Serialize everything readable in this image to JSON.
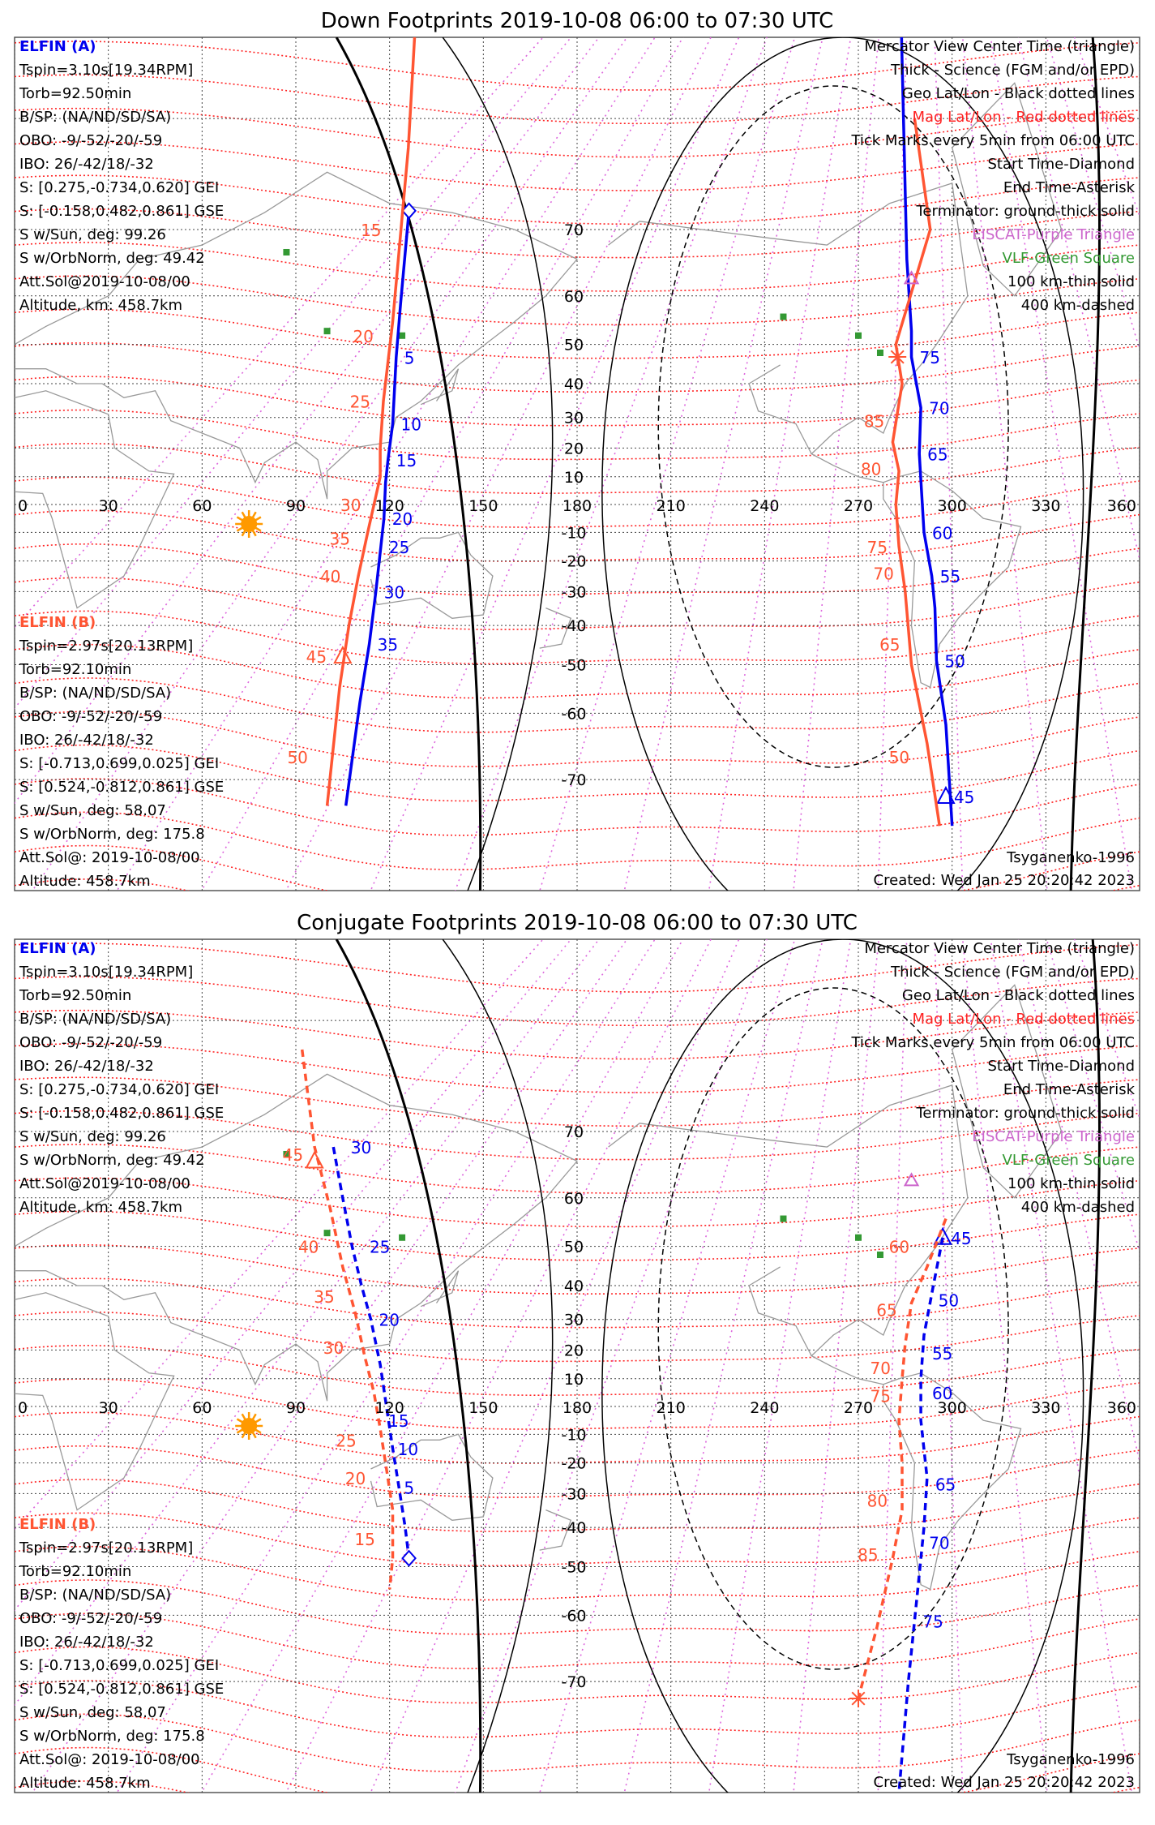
{
  "colors": {
    "elfin_a": "#0000ee",
    "elfin_b": "#ff5533",
    "geo_grid": "#444444",
    "mag_grid": "#ff2222",
    "mag_meridian": "#dd66dd",
    "terminator": "#000000",
    "sun": "#ff9900",
    "coast": "#999999",
    "vlf": "#339933",
    "eiscat": "#cc66cc"
  },
  "panels": [
    {
      "title": "Down Footprints 2019-10-08 06:00 to 07:30 UTC",
      "left_a": {
        "header": "ELFIN (A)",
        "lines": [
          "Tspin=3.10s[19.34RPM]",
          "Torb=92.50min",
          "B/SP: (NA/ND/SD/SA)",
          "OBO: -9/-52/-20/-59",
          "IBO: 26/-42/18/-32",
          "S: [0.275,-0.734,0.620] GEI",
          "S: [-0.158,0.482,0.861] GSE",
          "S w/Sun, deg: 99.26",
          "S w/OrbNorm, deg: 49.42",
          "Att.Sol@2019-10-08/00",
          "Altitude, km: 458.7km"
        ]
      },
      "left_b": {
        "header": "ELFIN (B)",
        "lines": [
          "Tspin=2.97s[20.13RPM]",
          "Torb=92.10min",
          "B/SP: (NA/ND/SD/SA)",
          "OBO: -9/-52/-20/-59",
          "IBO: 26/-42/18/-32",
          "S: [-0.713,0.699,0.025] GEI",
          "S: [0.524,-0.812,0.861] GSE",
          "S w/Sun, deg: 58.07",
          "S w/OrbNorm, deg: 175.8",
          "Att.Sol@: 2019-10-08/00",
          "Altitude: 458.7km"
        ]
      },
      "legend": [
        "Mercator View Center Time (triangle)",
        "Thick - Science (FGM and/or EPD)",
        "Geo Lat/Lon - Black dotted lines",
        "Mag Lat/Lon - Red dotted lines",
        "Tick Marks every 5min from 06:00 UTC",
        "Start Time-Diamond",
        "End Time-Asterisk",
        "Terminator: ground-thick solid",
        "EISCAT-Purple Triangle",
        "VLF-Green Square",
        "100 km-thin solid",
        "400 km-dashed"
      ],
      "model": "Tsyganenko-1996",
      "created": "Created: Wed Jan 25 20:20:42 2023"
    },
    {
      "title": "Conjugate Footprints 2019-10-08 06:00 to 07:30 UTC",
      "left_a": {
        "header": "ELFIN (A)",
        "lines": [
          "Tspin=3.10s[19.34RPM]",
          "Torb=92.50min",
          "B/SP: (NA/ND/SD/SA)",
          "OBO: -9/-52/-20/-59",
          "IBO: 26/-42/18/-32",
          "S: [0.275,-0.734,0.620] GEI",
          "S: [-0.158,0.482,0.861] GSE",
          "S w/Sun, deg: 99.26",
          "S w/OrbNorm, deg: 49.42",
          "Att.Sol@2019-10-08/00",
          "Altitude, km: 458.7km"
        ]
      },
      "left_b": {
        "header": "ELFIN (B)",
        "lines": [
          "Tspin=2.97s[20.13RPM]",
          "Torb=92.10min",
          "B/SP: (NA/ND/SD/SA)",
          "OBO: -9/-52/-20/-59",
          "IBO: 26/-42/18/-32",
          "S: [-0.713,0.699,0.025] GEI",
          "S: [0.524,-0.812,0.861] GSE",
          "S w/Sun, deg: 58.07",
          "S w/OrbNorm, deg: 175.8",
          "Att.Sol@: 2019-10-08/00",
          "Altitude: 458.7km"
        ]
      },
      "legend": [
        "Mercator View Center Time (triangle)",
        "Thick - Science (FGM and/or EPD)",
        "Geo Lat/Lon - Black dotted lines",
        "Mag Lat/Lon - Red dotted lines",
        "Tick Marks every 5min from 06:00 UTC",
        "Start Time-Diamond",
        "End Time-Asterisk",
        "Terminator: ground-thick solid",
        "EISCAT-Purple Triangle",
        "VLF-Green Square",
        "100 km-thin solid",
        "400 km-dashed"
      ],
      "model": "Tsyganenko-1996",
      "created": "Created: Wed Jan 25 20:20:42 2023"
    }
  ],
  "chart_data": [
    {
      "type": "map",
      "projection": "mercator",
      "title": "Down Footprints 2019-10-08 06:00 to 07:30 UTC",
      "x_range": [
        0,
        360
      ],
      "y_range": [
        -80,
        84
      ],
      "x_ticks": [
        0,
        30,
        60,
        90,
        120,
        150,
        180,
        210,
        240,
        270,
        300,
        330,
        360
      ],
      "y_ticks": [
        70,
        60,
        50,
        40,
        30,
        20,
        10,
        -10,
        -20,
        -30,
        -40,
        -50,
        -60,
        -70
      ],
      "center_lon": 180,
      "grid": true,
      "sun": {
        "lon": 75,
        "lat": -7
      },
      "vlf_stations": [
        [
          87,
          67
        ],
        [
          100,
          53
        ],
        [
          124,
          52
        ],
        [
          246,
          56
        ],
        [
          270,
          52
        ],
        [
          277,
          48
        ]
      ],
      "eiscat": [
        [
          287,
          63
        ]
      ],
      "series": [
        {
          "name": "ELFIN (A)",
          "style": "solid",
          "points": [
            [
              126.2,
              72.2
            ],
            [
              124.8,
              66
            ],
            [
              123.5,
              58.5
            ],
            [
              122.1,
              46.9
            ],
            [
              121,
              28
            ],
            [
              119.5,
              16
            ],
            [
              118.7,
              8
            ],
            [
              118.2,
              -5
            ],
            [
              117.2,
              -15
            ],
            [
              115.6,
              -30
            ],
            [
              113.5,
              -45
            ],
            [
              110.5,
              -58
            ],
            [
              106,
              -73
            ]
          ],
          "ticks": [
            {
              "label": "5",
              "lon": 122.1,
              "lat": 46.9
            },
            {
              "label": "10",
              "lon": 121,
              "lat": 28
            },
            {
              "label": "15",
              "lon": 119.5,
              "lat": 16
            },
            {
              "label": "20",
              "lon": 118.2,
              "lat": -5
            },
            {
              "label": "25",
              "lon": 117.2,
              "lat": -15
            },
            {
              "label": "30",
              "lon": 115.6,
              "lat": -30
            },
            {
              "label": "35",
              "lon": 113.5,
              "lat": -45
            }
          ],
          "start": [
            126.2,
            72.2
          ]
        },
        {
          "name": "ELFIN (B)",
          "style": "solid",
          "points": [
            [
              128,
              84
            ],
            [
              126,
              78
            ],
            [
              123,
              67
            ],
            [
              121,
              55
            ],
            [
              118,
              35
            ],
            [
              117,
              20
            ],
            [
              117,
              10
            ],
            [
              115,
              0
            ],
            [
              113,
              -10
            ],
            [
              110,
              -25
            ],
            [
              107,
              -40
            ],
            [
              104,
              -55
            ],
            [
              100,
              -73
            ]
          ],
          "ticks": [
            {
              "label": "15",
              "lon": 121,
              "lat": 70
            },
            {
              "label": "20",
              "lon": 118.5,
              "lat": 52
            },
            {
              "label": "25",
              "lon": 117.5,
              "lat": 35
            },
            {
              "label": "30",
              "lon": 114.5,
              "lat": 0
            },
            {
              "label": "35",
              "lon": 111,
              "lat": -12
            },
            {
              "label": "40",
              "lon": 108,
              "lat": -25
            },
            {
              "label": "45",
              "lon": 103.5,
              "lat": -48
            },
            {
              "label": "50",
              "lon": 97.5,
              "lat": -67
            }
          ],
          "view_center": [
            105,
            -48
          ]
        },
        {
          "name": "ELFIN (A)",
          "style": "solid",
          "points": [
            [
              282.5,
              88
            ],
            [
              285.5,
              66
            ],
            [
              287,
              53
            ],
            [
              287,
              47
            ],
            [
              290,
              33
            ],
            [
              289.5,
              18
            ],
            [
              291,
              -10
            ],
            [
              293.5,
              -25
            ],
            [
              294.5,
              -35
            ],
            [
              295,
              -49
            ],
            [
              298,
              -62
            ],
            [
              300,
              -75
            ]
          ],
          "ticks": [
            {
              "label": "75",
              "lon": 287,
              "lat": 47
            },
            {
              "label": "70",
              "lon": 290,
              "lat": 33
            },
            {
              "label": "65",
              "lon": 289.5,
              "lat": 18
            },
            {
              "label": "60",
              "lon": 291,
              "lat": -10
            },
            {
              "label": "55",
              "lon": 293.5,
              "lat": -25
            },
            {
              "label": "50",
              "lon": 295,
              "lat": -49
            },
            {
              "label": "45",
              "lon": 298,
              "lat": -72
            }
          ],
          "view_center": [
            298,
            -72
          ]
        },
        {
          "name": "ELFIN (B)",
          "style": "solid",
          "points": [
            [
              288,
              80
            ],
            [
              293,
              70
            ],
            [
              282,
              50
            ],
            [
              284,
              40
            ],
            [
              281,
              22
            ],
            [
              283,
              12
            ],
            [
              282,
              0
            ],
            [
              283,
              -15
            ],
            [
              285,
              -30
            ],
            [
              287,
              -50
            ],
            [
              292,
              -65
            ],
            [
              296,
              -75
            ]
          ],
          "ticks": [
            {
              "label": "85",
              "lon": 282,
              "lat": 29
            },
            {
              "label": "80",
              "lon": 281,
              "lat": 13
            },
            {
              "label": "75",
              "lon": 283,
              "lat": -15
            },
            {
              "label": "70",
              "lon": 285,
              "lat": -24
            },
            {
              "label": "65",
              "lon": 287,
              "lat": -45
            },
            {
              "label": "50",
              "lon": 290,
              "lat": -67
            }
          ],
          "end": [
            282.5,
            47
          ]
        }
      ]
    },
    {
      "type": "map",
      "projection": "mercator",
      "title": "Conjugate Footprints 2019-10-08 06:00 to 07:30 UTC",
      "x_range": [
        0,
        360
      ],
      "y_range": [
        -80,
        84
      ],
      "x_ticks": [
        0,
        30,
        60,
        90,
        120,
        150,
        180,
        210,
        240,
        270,
        300,
        330,
        360
      ],
      "y_ticks": [
        70,
        60,
        50,
        40,
        30,
        20,
        10,
        -10,
        -20,
        -30,
        -40,
        -50,
        -60,
        -70
      ],
      "center_lon": 180,
      "grid": true,
      "sun": {
        "lon": 75,
        "lat": -7
      },
      "vlf_stations": [
        [
          87,
          67
        ],
        [
          100,
          53
        ],
        [
          124,
          52
        ],
        [
          246,
          56
        ],
        [
          270,
          52
        ],
        [
          277,
          48
        ]
      ],
      "eiscat": [
        [
          287,
          63
        ]
      ],
      "series": [
        {
          "name": "ELFIN (A)",
          "style": "dashed",
          "points": [
            [
              102,
              68
            ],
            [
              105,
              60
            ],
            [
              108,
              50
            ],
            [
              111,
              40
            ],
            [
              114,
              30
            ],
            [
              117,
              15
            ],
            [
              119,
              0
            ],
            [
              121,
              -15
            ],
            [
              123,
              -28
            ],
            [
              125,
              -40
            ],
            [
              126.2,
              -48
            ]
          ],
          "ticks": [
            {
              "label": "30",
              "lon": 105,
              "lat": 68
            },
            {
              "label": "25",
              "lon": 111,
              "lat": 50
            },
            {
              "label": "20",
              "lon": 114,
              "lat": 30
            },
            {
              "label": "15",
              "lon": 117,
              "lat": -5
            },
            {
              "label": "10",
              "lon": 120,
              "lat": -15
            },
            {
              "label": "5",
              "lon": 122,
              "lat": -28
            }
          ],
          "start": [
            126.2,
            -48
          ]
        },
        {
          "name": "ELFIN (B)",
          "style": "dashed",
          "points": [
            [
              92,
              78
            ],
            [
              96,
              68
            ],
            [
              101,
              58
            ],
            [
              105,
              45
            ],
            [
              109,
              32
            ],
            [
              112,
              18
            ],
            [
              115,
              5
            ],
            [
              117,
              -8
            ],
            [
              119,
              -22
            ],
            [
              121,
              -35
            ],
            [
              121,
              -48
            ],
            [
              120,
              -55
            ]
          ],
          "ticks": [
            {
              "label": "45",
              "lon": 96,
              "lat": 67
            },
            {
              "label": "40",
              "lon": 101,
              "lat": 50
            },
            {
              "label": "35",
              "lon": 106,
              "lat": 37
            },
            {
              "label": "30",
              "lon": 109,
              "lat": 21
            },
            {
              "label": "25",
              "lon": 113,
              "lat": -12
            },
            {
              "label": "20",
              "lon": 116,
              "lat": -25
            },
            {
              "label": "15",
              "lon": 119,
              "lat": -43
            }
          ],
          "view_center": [
            96,
            66
          ]
        },
        {
          "name": "ELFIN (A)",
          "style": "dashed",
          "points": [
            [
              297,
              52
            ],
            [
              294,
              40
            ],
            [
              291,
              25
            ],
            [
              290,
              10
            ],
            [
              290,
              -5
            ],
            [
              292,
              -25
            ],
            [
              291,
              -40
            ],
            [
              289,
              -55
            ],
            [
              286,
              -70
            ],
            [
              283,
              -80
            ]
          ],
          "ticks": [
            {
              "label": "45",
              "lon": 297,
              "lat": 52
            },
            {
              "label": "50",
              "lon": 293,
              "lat": 36
            },
            {
              "label": "55",
              "lon": 291,
              "lat": 19
            },
            {
              "label": "60",
              "lon": 291,
              "lat": 5
            },
            {
              "label": "65",
              "lon": 292,
              "lat": -27
            },
            {
              "label": "70",
              "lon": 290,
              "lat": -44
            },
            {
              "label": "75",
              "lon": 288,
              "lat": -61
            }
          ],
          "view_center": [
            297,
            52
          ]
        },
        {
          "name": "ELFIN (B)",
          "style": "dashed",
          "points": [
            [
              298,
              56
            ],
            [
              292,
              45
            ],
            [
              287,
              35
            ],
            [
              285,
              22
            ],
            [
              284,
              10
            ],
            [
              283,
              -5
            ],
            [
              284,
              -20
            ],
            [
              284,
              -35
            ],
            [
              281,
              -48
            ],
            [
              276,
              -62
            ],
            [
              270,
              -72
            ]
          ],
          "ticks": [
            {
              "label": "60",
              "lon": 290,
              "lat": 50
            },
            {
              "label": "65",
              "lon": 286,
              "lat": 33
            },
            {
              "label": "70",
              "lon": 284,
              "lat": 14
            },
            {
              "label": "75",
              "lon": 284,
              "lat": 4
            },
            {
              "label": "80",
              "lon": 283,
              "lat": -32
            },
            {
              "label": "85",
              "lon": 280,
              "lat": -47
            }
          ],
          "end": [
            270,
            -72
          ]
        }
      ]
    }
  ]
}
